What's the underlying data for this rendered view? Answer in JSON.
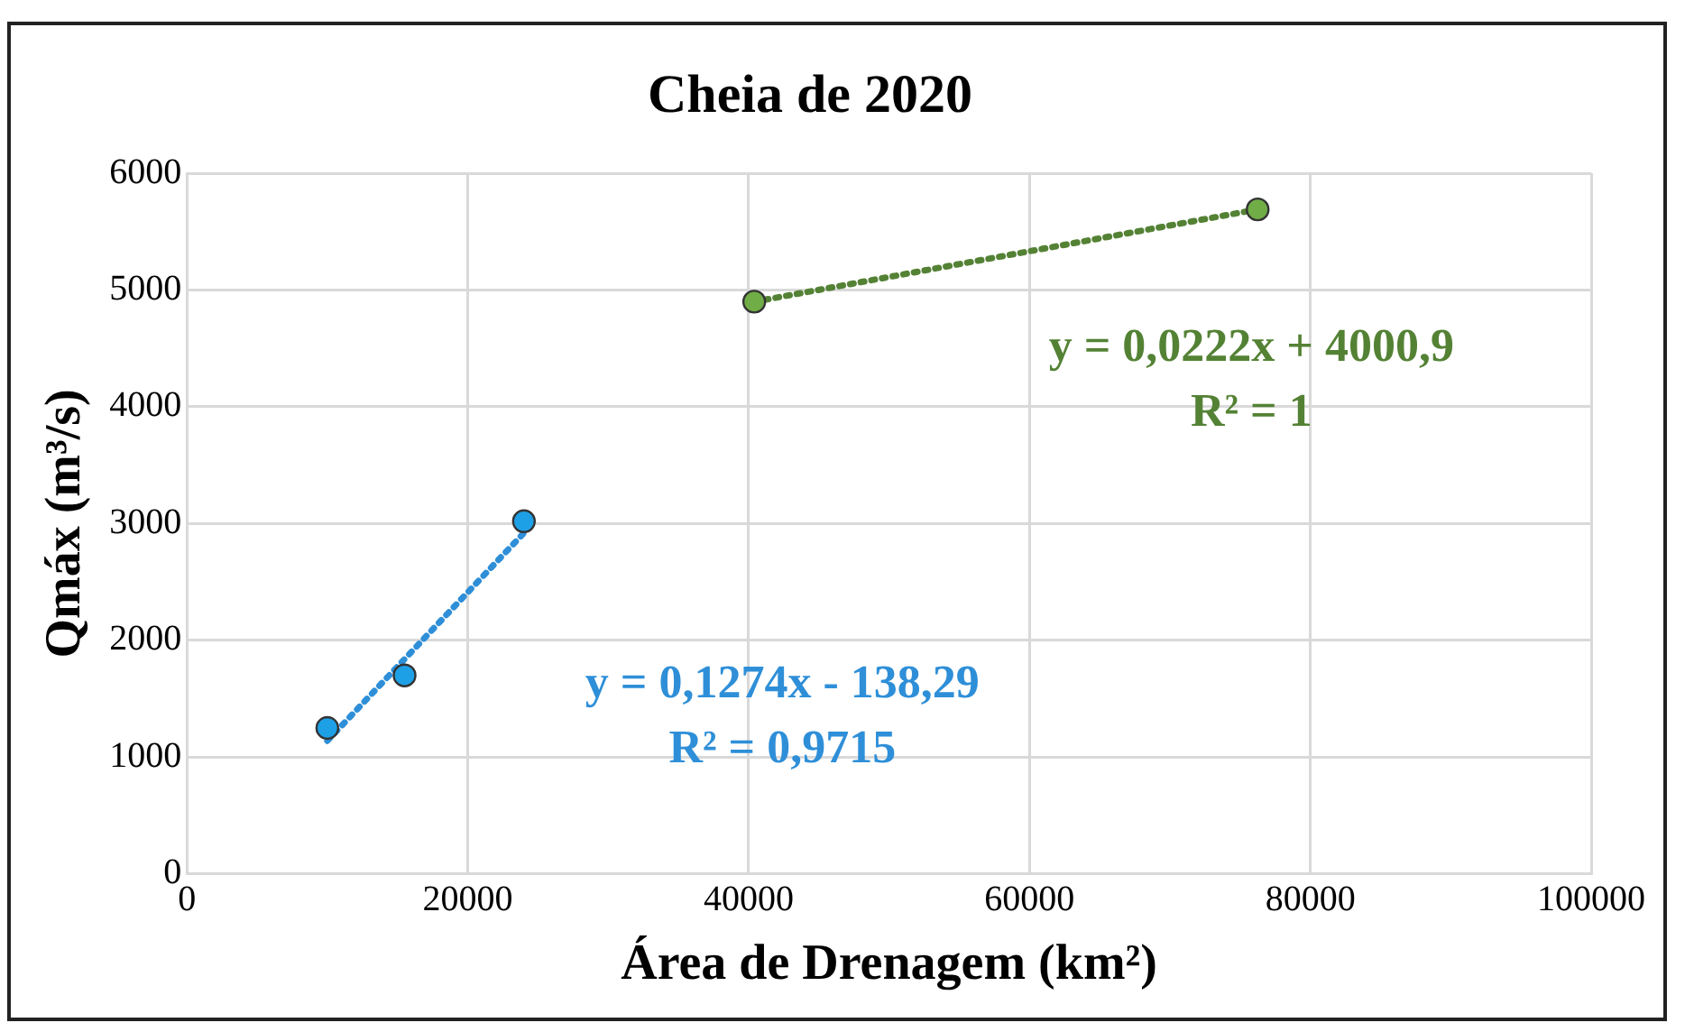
{
  "chart_data": {
    "type": "scatter",
    "title": "Cheia de 2020",
    "xlabel": "Área de Drenagem (km²)",
    "ylabel": "Qmáx (m³/s)",
    "xlim": [
      0,
      100000
    ],
    "xticks": [
      0,
      20000,
      40000,
      60000,
      80000,
      100000
    ],
    "ylim": [
      0,
      6000
    ],
    "yticks": [
      0,
      1000,
      2000,
      3000,
      4000,
      5000,
      6000
    ],
    "grid": true,
    "legend": false,
    "marker": "circle",
    "series": [
      {
        "type": "line",
        "color": "#2e8fd8",
        "x": [
          10000,
          24000
        ],
        "values": [
          1140,
          2920
        ],
        "line_style": "dotted",
        "marker": "none"
      },
      {
        "color": "#1ea0e6",
        "x": [
          10000,
          15500,
          24000
        ],
        "values": [
          1250,
          1700,
          3020
        ]
      },
      {
        "type": "line",
        "color": "#548235",
        "x": [
          40400,
          76250
        ],
        "values": [
          4900,
          5690
        ],
        "line_style": "dotted",
        "marker": "none"
      },
      {
        "color": "#70ad47",
        "x": [
          40400,
          76250
        ],
        "values": [
          4900,
          5690
        ]
      }
    ],
    "annotations": [
      "y = 0,1274x - 138,29",
      "R² = 0,9715",
      "y = 0,0222x + 4000,9",
      "R² = 1"
    ]
  }
}
